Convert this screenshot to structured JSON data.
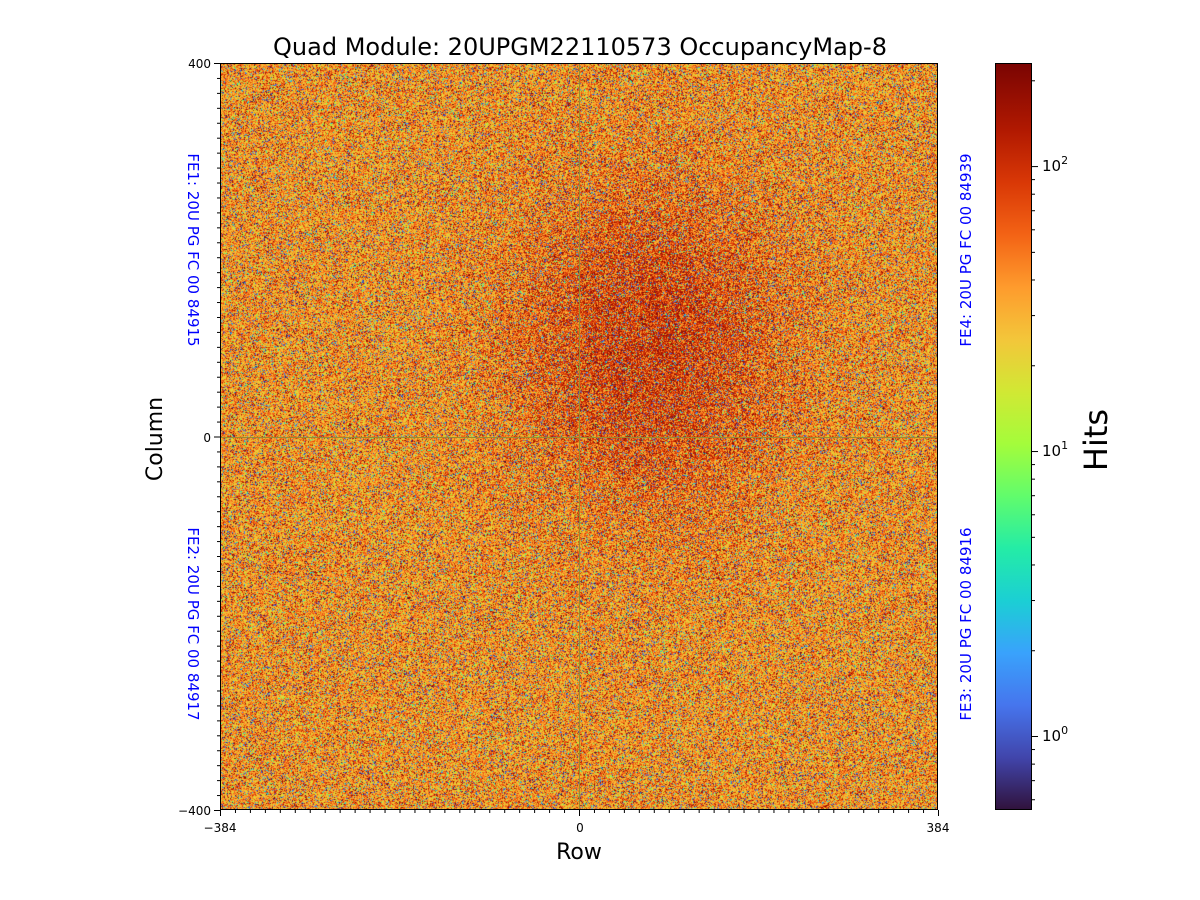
{
  "chart_data": {
    "type": "heatmap",
    "title": "Quad Module: 20UPGM22110573 OccupancyMap-8",
    "xlabel": "Row",
    "ylabel": "Column",
    "xlim": [
      -384,
      384
    ],
    "ylim": [
      -400,
      400
    ],
    "x_ticks": [
      {
        "value": -384,
        "label": "−384"
      },
      {
        "value": 0,
        "label": "0"
      },
      {
        "value": 384,
        "label": "384"
      }
    ],
    "y_ticks": [
      {
        "value": 400,
        "label": "400"
      },
      {
        "value": 0,
        "label": "0"
      },
      {
        "value": -400,
        "label": "−400"
      }
    ],
    "chip_labels": [
      {
        "id": "fe1",
        "text": "FE1: 20U PG FC 00 84915",
        "quadrant": "top-left"
      },
      {
        "id": "fe2",
        "text": "FE2: 20U PG FC 00 84917",
        "quadrant": "bottom-left"
      },
      {
        "id": "fe3",
        "text": "FE3: 20U PG FC 00 84916",
        "quadrant": "bottom-right"
      },
      {
        "id": "fe4",
        "text": "FE4: 20U PG FC 00 84939",
        "quadrant": "top-right"
      }
    ],
    "colorbar": {
      "label": "Hits",
      "scale": "log",
      "range": [
        0.55,
        230
      ],
      "colormap": "turbo",
      "ticks": [
        {
          "value": 1,
          "base": "10",
          "exp": "0"
        },
        {
          "value": 10,
          "base": "10",
          "exp": "1"
        },
        {
          "value": 100,
          "base": "10",
          "exp": "2"
        }
      ]
    },
    "hits_summary": {
      "typical_hits": 40,
      "distribution": "mostly 20-100 hits per pixel with dark/red high-hit and blue/green low-hit pixels scattered",
      "denser_high_region": "top-right quadrant near center"
    }
  },
  "colors": {
    "chip_label": "#0000ff",
    "divider": "#9a8a30"
  }
}
